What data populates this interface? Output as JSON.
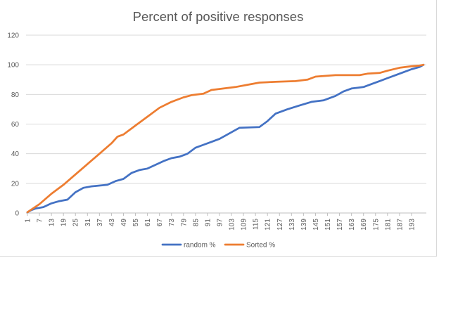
{
  "chart_data": {
    "type": "line",
    "title": "Percent of positive responses",
    "xlabel": "",
    "ylabel": "",
    "x_range": [
      1,
      199
    ],
    "x_tick_labels": [
      "1",
      "7",
      "13",
      "19",
      "25",
      "31",
      "37",
      "43",
      "49",
      "55",
      "61",
      "67",
      "73",
      "79",
      "85",
      "91",
      "97",
      "103",
      "109",
      "115",
      "121",
      "127",
      "133",
      "139",
      "145",
      "151",
      "157",
      "163",
      "169",
      "175",
      "181",
      "187",
      "193"
    ],
    "ylim": [
      0,
      120
    ],
    "y_ticks": [
      0,
      20,
      40,
      60,
      80,
      100,
      120
    ],
    "grid": true,
    "legend_position": "bottom",
    "series": [
      {
        "name": "random %",
        "color": "#4472C4",
        "points": [
          [
            1,
            0.5
          ],
          [
            3,
            2
          ],
          [
            5,
            3
          ],
          [
            9,
            4
          ],
          [
            13,
            6.5
          ],
          [
            17,
            8
          ],
          [
            21,
            9
          ],
          [
            25,
            14
          ],
          [
            29,
            17
          ],
          [
            33,
            18
          ],
          [
            41,
            19
          ],
          [
            45,
            21.5
          ],
          [
            49,
            23
          ],
          [
            53,
            27
          ],
          [
            57,
            29
          ],
          [
            61,
            30
          ],
          [
            69,
            35
          ],
          [
            73,
            37
          ],
          [
            77,
            38
          ],
          [
            81,
            40
          ],
          [
            85,
            44
          ],
          [
            89,
            46
          ],
          [
            93,
            48
          ],
          [
            97,
            50
          ],
          [
            101,
            53
          ],
          [
            105,
            56
          ],
          [
            107,
            57.5
          ],
          [
            117,
            58
          ],
          [
            121,
            62
          ],
          [
            125,
            67
          ],
          [
            131,
            70
          ],
          [
            137,
            72.5
          ],
          [
            143,
            75
          ],
          [
            149,
            76
          ],
          [
            155,
            79
          ],
          [
            159,
            82
          ],
          [
            163,
            84
          ],
          [
            169,
            85
          ],
          [
            173,
            87
          ],
          [
            177,
            89
          ],
          [
            181,
            91
          ],
          [
            185,
            93
          ],
          [
            189,
            95
          ],
          [
            193,
            97
          ],
          [
            197,
            98.5
          ],
          [
            199,
            100
          ]
        ]
      },
      {
        "name": "Sorted %",
        "color": "#ED7D31",
        "points": [
          [
            1,
            0.5
          ],
          [
            7,
            6
          ],
          [
            13,
            13
          ],
          [
            19,
            19
          ],
          [
            25,
            26
          ],
          [
            31,
            33
          ],
          [
            37,
            40
          ],
          [
            43,
            47
          ],
          [
            46,
            51.5
          ],
          [
            49,
            53
          ],
          [
            55,
            59
          ],
          [
            61,
            65
          ],
          [
            67,
            71
          ],
          [
            73,
            75
          ],
          [
            79,
            78
          ],
          [
            83,
            79.5
          ],
          [
            89,
            80.5
          ],
          [
            93,
            83
          ],
          [
            99,
            84
          ],
          [
            105,
            85
          ],
          [
            111,
            86.5
          ],
          [
            117,
            88
          ],
          [
            125,
            88.5
          ],
          [
            135,
            89
          ],
          [
            141,
            90
          ],
          [
            145,
            92
          ],
          [
            155,
            93
          ],
          [
            167,
            93
          ],
          [
            171,
            94
          ],
          [
            177,
            94.5
          ],
          [
            181,
            96
          ],
          [
            187,
            98
          ],
          [
            193,
            99
          ],
          [
            197,
            99.5
          ],
          [
            199,
            100
          ]
        ]
      }
    ]
  }
}
